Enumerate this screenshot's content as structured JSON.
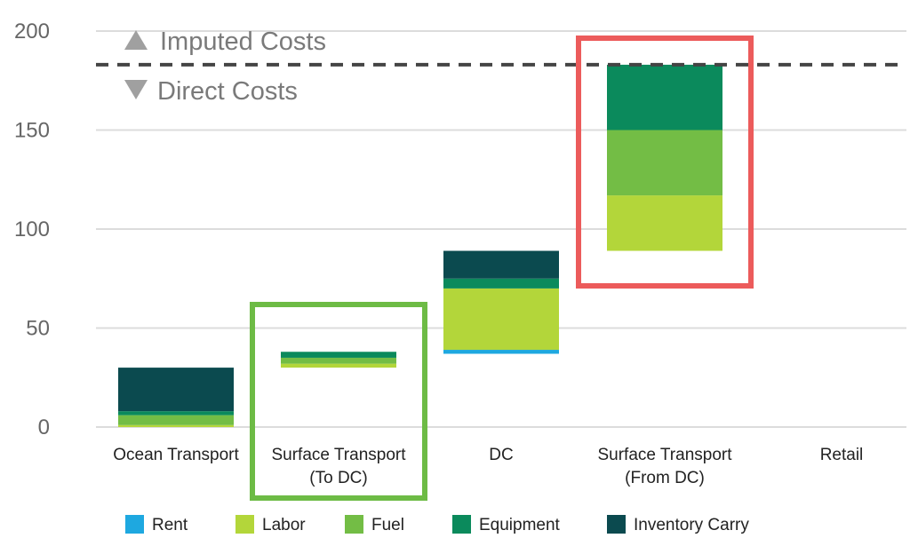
{
  "chart_data": {
    "type": "bar",
    "stacked": true,
    "waterfall": true,
    "ylim": [
      0,
      200
    ],
    "yticks": [
      0,
      50,
      100,
      150,
      200
    ],
    "grid": true,
    "legend_position": "bottom",
    "categories": [
      [
        "Ocean Transport"
      ],
      [
        "Surface Transport",
        "(To DC)"
      ],
      [
        "DC"
      ],
      [
        "Surface Transport",
        "(From DC)"
      ],
      [
        "Retail"
      ]
    ],
    "bar_bases": [
      0,
      30,
      37,
      89,
      183
    ],
    "series": [
      {
        "name": "Rent",
        "color": "#1ea8e0",
        "values": [
          0,
          0,
          2,
          0,
          0
        ]
      },
      {
        "name": "Labor",
        "color": "#b3d63a",
        "values": [
          1,
          2,
          31,
          28,
          0
        ]
      },
      {
        "name": "Fuel",
        "color": "#73bd45",
        "values": [
          5,
          3,
          0,
          33,
          0
        ]
      },
      {
        "name": "Equipment",
        "color": "#0b8a5c",
        "values": [
          2,
          3,
          5,
          33,
          0
        ]
      },
      {
        "name": "Inventory Carry",
        "color": "#0b4a4f",
        "values": [
          22,
          0,
          14,
          0,
          0
        ]
      }
    ],
    "reference_line": {
      "value": 183,
      "style": "dashed",
      "color": "#444444"
    },
    "annotations": {
      "above": "Imputed Costs",
      "below": "Direct Costs"
    },
    "highlights": [
      {
        "category_index": 1,
        "color": "#6dbb45"
      },
      {
        "category_index": 3,
        "color": "#ec5b5b"
      }
    ]
  }
}
